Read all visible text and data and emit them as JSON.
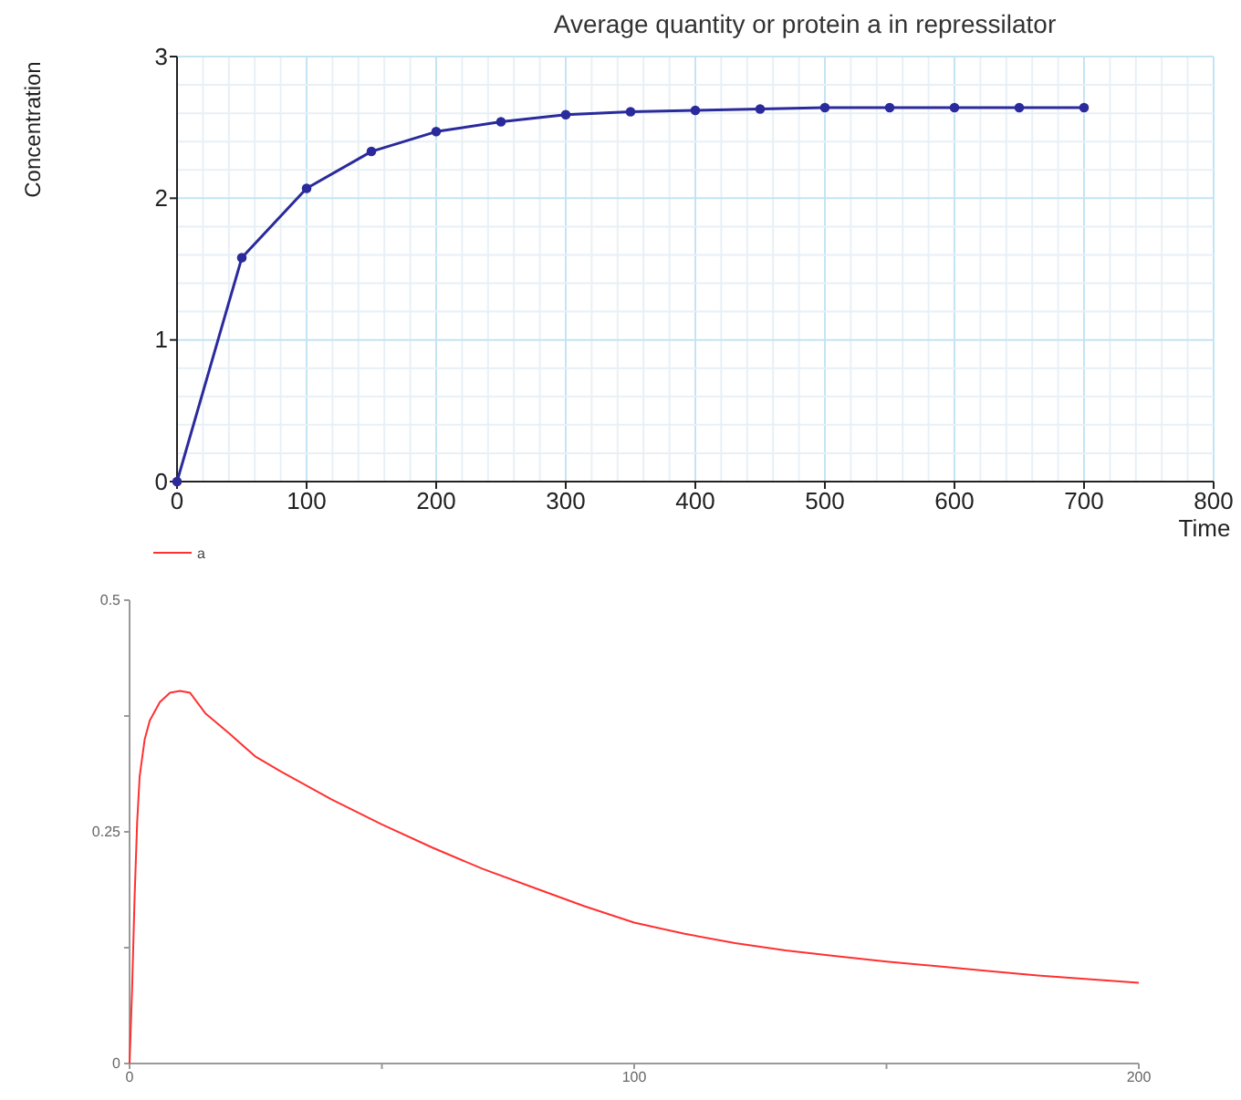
{
  "chart_data": [
    {
      "type": "line",
      "title": "Average quantity or protein a in repressilator",
      "xlabel": "Time",
      "ylabel": "Concentration",
      "x": [
        0,
        50,
        100,
        150,
        200,
        250,
        300,
        350,
        400,
        450,
        500,
        550,
        600,
        650,
        700
      ],
      "series": [
        {
          "color": "#2a2a9c",
          "values": [
            0,
            1.58,
            2.07,
            2.33,
            2.47,
            2.54,
            2.59,
            2.61,
            2.62,
            2.63,
            2.64,
            2.64,
            2.64,
            2.64,
            2.64
          ]
        }
      ],
      "xlim": [
        0,
        800
      ],
      "ylim": [
        0,
        3
      ],
      "xticks": [
        0,
        {
          "value": 20,
          "label": null
        },
        {
          "value": 40,
          "label": null
        },
        {
          "value": 60,
          "label": null
        },
        {
          "value": 80,
          "label": null
        },
        100,
        {
          "value": 120,
          "label": null
        },
        {
          "value": 140,
          "label": null
        },
        {
          "value": 160,
          "label": null
        },
        {
          "value": 180,
          "label": null
        },
        200,
        {
          "value": 220,
          "label": null
        },
        {
          "value": 240,
          "label": null
        },
        {
          "value": 260,
          "label": null
        },
        {
          "value": 280,
          "label": null
        },
        300,
        {
          "value": 320,
          "label": null
        },
        {
          "value": 340,
          "label": null
        },
        {
          "value": 360,
          "label": null
        },
        {
          "value": 380,
          "label": null
        },
        400,
        {
          "value": 420,
          "label": null
        },
        {
          "value": 440,
          "label": null
        },
        {
          "value": 460,
          "label": null
        },
        {
          "value": 480,
          "label": null
        },
        500,
        {
          "value": 520,
          "label": null
        },
        {
          "value": 540,
          "label": null
        },
        {
          "value": 560,
          "label": null
        },
        {
          "value": 580,
          "label": null
        },
        600,
        {
          "value": 620,
          "label": null
        },
        {
          "value": 640,
          "label": null
        },
        {
          "value": 660,
          "label": null
        },
        {
          "value": 680,
          "label": null
        },
        700,
        {
          "value": 720,
          "label": null
        },
        {
          "value": 740,
          "label": null
        },
        {
          "value": 760,
          "label": null
        },
        {
          "value": 780,
          "label": null
        },
        800
      ],
      "yticks": [
        0,
        {
          "value": 0.2,
          "label": null
        },
        {
          "value": 0.4,
          "label": null
        },
        {
          "value": 0.6,
          "label": null
        },
        {
          "value": 0.8,
          "label": null
        },
        1,
        {
          "value": 1.2,
          "label": null
        },
        {
          "value": 1.4,
          "label": null
        },
        {
          "value": 1.6,
          "label": null
        },
        {
          "value": 1.8,
          "label": null
        },
        2,
        {
          "value": 2.2,
          "label": null
        },
        {
          "value": 2.4,
          "label": null
        },
        {
          "value": 2.6,
          "label": null
        },
        {
          "value": 2.8,
          "label": null
        },
        3
      ],
      "grid": true,
      "marker": "circle",
      "legend": false
    },
    {
      "type": "line",
      "x": [
        0,
        0.5,
        1,
        1.5,
        2,
        3,
        4,
        6,
        8,
        10,
        12,
        15,
        20,
        25,
        30,
        40,
        50,
        60,
        70,
        80,
        90,
        100,
        110,
        120,
        130,
        140,
        150,
        160,
        170,
        180,
        190,
        200
      ],
      "series": [
        {
          "name": "a",
          "color": "#ff3030",
          "values": [
            0,
            0.08,
            0.18,
            0.26,
            0.31,
            0.35,
            0.37,
            0.39,
            0.4,
            0.402,
            0.4,
            0.378,
            0.355,
            0.331,
            0.315,
            0.285,
            0.258,
            0.233,
            0.21,
            0.19,
            0.17,
            0.152,
            0.14,
            0.13,
            0.122,
            0.116,
            0.11,
            0.105,
            0.1,
            0.095,
            0.091,
            0.087
          ]
        }
      ],
      "xlim": [
        0,
        200
      ],
      "ylim": [
        0,
        0.5
      ],
      "xticks": [
        0,
        {
          "value": 50,
          "label": null
        },
        100,
        {
          "value": 150,
          "label": null
        },
        200
      ],
      "yticks": [
        0,
        {
          "value": 0.125,
          "label": null
        },
        0.25,
        {
          "value": 0.375,
          "label": null
        },
        0.5
      ],
      "grid": false,
      "legend": "top left"
    }
  ]
}
